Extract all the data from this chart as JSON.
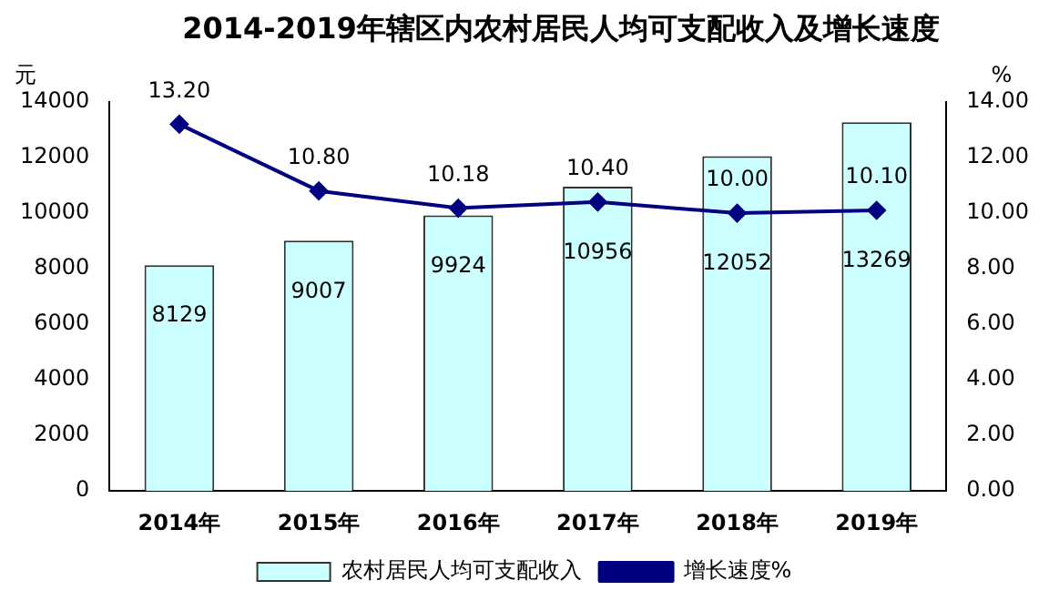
{
  "chart_data": {
    "type": "bar",
    "title": "2014-2019年辖区内农村居民人均可支配收入及增长速度",
    "categories": [
      "2014年",
      "2015年",
      "2016年",
      "2017年",
      "2018年",
      "2019年"
    ],
    "series": [
      {
        "name": "农村居民人均可支配收入",
        "color": "#ccffff",
        "values": [
          8129,
          9007,
          9924,
          10956,
          12052,
          13269
        ],
        "value_labels": [
          "8129",
          "9007",
          "9924",
          "10956",
          "12052",
          "13269"
        ]
      },
      {
        "name": "增长速度%",
        "type": "line",
        "axis": "y2",
        "color": "#000080",
        "values": [
          13.2,
          10.8,
          10.18,
          10.4,
          10.0,
          10.1
        ],
        "value_labels": [
          "13.20",
          "10.80",
          "10.18",
          "10.40",
          "10.00",
          "10.10"
        ]
      }
    ],
    "ylabel": "元",
    "y2label": "%",
    "ylim": [
      0,
      14000
    ],
    "yticks": [
      0,
      2000,
      4000,
      6000,
      8000,
      10000,
      12000,
      14000
    ],
    "y2lim": [
      0,
      14
    ],
    "y2ticks": [
      {
        "value": 0,
        "label": "0.00"
      },
      {
        "value": 2,
        "label": "2.00"
      },
      {
        "value": 4,
        "label": "4.00"
      },
      {
        "value": 6,
        "label": "6.00"
      },
      {
        "value": 8,
        "label": "8.00"
      },
      {
        "value": 10,
        "label": "10.00"
      },
      {
        "value": 12,
        "label": "12.00"
      },
      {
        "value": 14,
        "label": "14.00"
      }
    ],
    "legend": "bottom",
    "marker": "diamond",
    "grid": false
  }
}
